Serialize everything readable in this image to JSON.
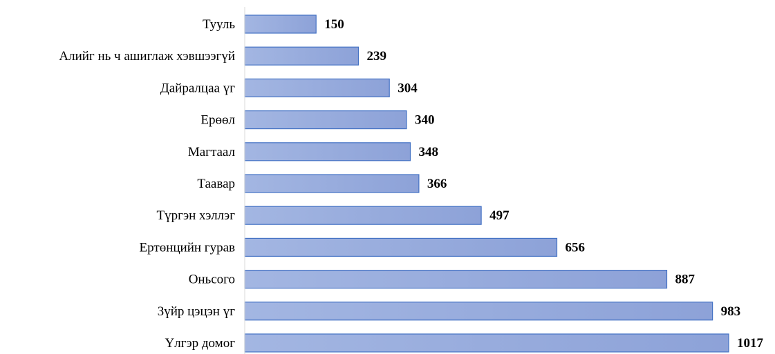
{
  "chart_data": {
    "type": "bar",
    "orientation": "horizontal",
    "title": "",
    "xlabel": "",
    "ylabel": "",
    "categories": [
      "Тууль",
      "Алийг нь ч ашиглаж хэвшээгүй",
      "Дайралцаа үг",
      "Ерөөл",
      "Магтаал",
      "Таавар",
      "Түргэн хэллэг",
      "Ертөнцийн гурав",
      "Оньсого",
      "Зүйр цэцэн үг",
      "Үлгэр домог"
    ],
    "values": [
      150,
      239,
      304,
      340,
      348,
      366,
      497,
      656,
      887,
      983,
      1017
    ],
    "data_labels": [
      "150",
      "239",
      "304",
      "340",
      "348",
      "366",
      "497",
      "656",
      "887",
      "983",
      "1017"
    ],
    "xlim": [
      0,
      1017
    ],
    "grid": false,
    "legend": "none",
    "colors": {
      "bar_fill_left": "#a3b6e2",
      "bar_fill_right": "#8da2d8",
      "bar_border": "#4472c4",
      "axis_line": "#d9d9d9"
    }
  }
}
